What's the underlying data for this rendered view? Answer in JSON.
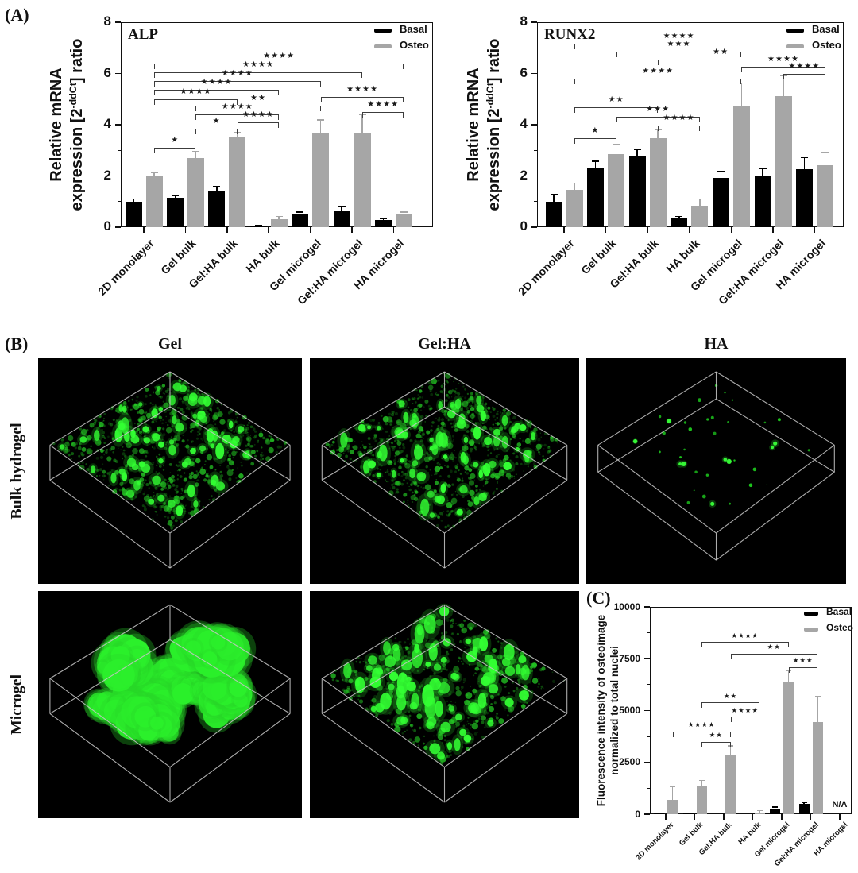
{
  "panel_a": {
    "label": "(A)",
    "ylabel": {
      "line1": "Relative mRNA",
      "line2_pre": "expression [2",
      "line2_sup": "-ddCt",
      "line2_post": "] ratio"
    }
  },
  "panel_b": {
    "label": "(B)",
    "columns": [
      "Gel",
      "Gel:HA",
      "HA"
    ],
    "rows": [
      "Bulk hydrogel",
      "Microgel"
    ]
  },
  "panel_c": {
    "label": "(C)",
    "ylabel": {
      "line1": "Fluorescence intensity of osteoimage",
      "line2": "normalized to total nuclei"
    }
  },
  "chart_data": [
    {
      "type": "bar",
      "title": "ALP",
      "ylabel": "Relative mRNA expression [2^-ddCt] ratio",
      "categories": [
        "2D monolayer",
        "Gel bulk",
        "Gel:HA bulk",
        "HA bulk",
        "Gel microgel",
        "Gel:HA microgel",
        "HA microgel"
      ],
      "series": [
        {
          "name": "Basal",
          "color": "#000000",
          "values": [
            1.0,
            1.15,
            1.4,
            0.05,
            0.52,
            0.65,
            0.28
          ],
          "errors": [
            0.1,
            0.08,
            0.2,
            0.02,
            0.07,
            0.15,
            0.06
          ]
        },
        {
          "name": "Osteo",
          "color": "#a6a6a6",
          "values": [
            2.0,
            2.7,
            3.5,
            0.3,
            3.65,
            3.7,
            0.53
          ],
          "errors": [
            0.12,
            0.26,
            0.21,
            0.12,
            0.54,
            0.7,
            0.06
          ]
        }
      ],
      "ylim": [
        0,
        8
      ],
      "yticks": [
        0,
        2,
        4,
        6,
        8
      ],
      "legend_position": "top-right",
      "grid": false,
      "significance": [
        {
          "group1": 0,
          "group2": 6,
          "y": 6.4,
          "stars": "****"
        },
        {
          "group1": 0,
          "group2": 5,
          "y": 6.05,
          "stars": "****"
        },
        {
          "group1": 0,
          "group2": 4,
          "y": 5.7,
          "stars": "****"
        },
        {
          "group1": 0,
          "group2": 3,
          "y": 5.35,
          "stars": "****"
        },
        {
          "group1": 0,
          "group2": 2,
          "y": 5.0,
          "stars": "****"
        },
        {
          "group1": 4,
          "group2": 6,
          "y": 5.1,
          "stars": "****"
        },
        {
          "group1": 1,
          "group2": 4,
          "y": 4.75,
          "stars": "**"
        },
        {
          "group1": 5,
          "group2": 6,
          "y": 4.5,
          "stars": "****"
        },
        {
          "group1": 1,
          "group2": 3,
          "y": 4.4,
          "stars": "****"
        },
        {
          "group1": 2,
          "group2": 3,
          "y": 4.1,
          "stars": "****"
        },
        {
          "group1": 1,
          "group2": 2,
          "y": 3.85,
          "stars": "*"
        },
        {
          "group1": 0,
          "group2": 1,
          "y": 3.1,
          "stars": "*"
        }
      ]
    },
    {
      "type": "bar",
      "title": "RUNX2",
      "ylabel": "Relative mRNA expression [2^-ddCt] ratio",
      "categories": [
        "2D monolayer",
        "Gel bulk",
        "Gel:HA bulk",
        "HA bulk",
        "Gel microgel",
        "Gel:HA microgel",
        "HA microgel"
      ],
      "series": [
        {
          "name": "Basal",
          "color": "#000000",
          "values": [
            1.0,
            2.3,
            2.8,
            0.36,
            1.92,
            2.02,
            2.26
          ],
          "errors": [
            0.28,
            0.27,
            0.24,
            0.06,
            0.26,
            0.26,
            0.45
          ]
        },
        {
          "name": "Osteo",
          "color": "#a6a6a6",
          "values": [
            1.47,
            2.86,
            3.48,
            0.83,
            4.7,
            5.13,
            2.42
          ],
          "errors": [
            0.25,
            0.38,
            0.34,
            0.27,
            0.93,
            0.79,
            0.51
          ]
        }
      ],
      "ylim": [
        0,
        8
      ],
      "yticks": [
        0,
        2,
        4,
        6,
        8
      ],
      "legend_position": "top-right",
      "grid": false,
      "significance": [
        {
          "group1": 0,
          "group2": 5,
          "y": 7.15,
          "stars": "****"
        },
        {
          "group1": 1,
          "group2": 4,
          "y": 6.85,
          "stars": "***"
        },
        {
          "group1": 2,
          "group2": 5,
          "y": 6.55,
          "stars": "**"
        },
        {
          "group1": 4,
          "group2": 6,
          "y": 6.27,
          "stars": "****"
        },
        {
          "group1": 5,
          "group2": 6,
          "y": 5.97,
          "stars": "****"
        },
        {
          "group1": 0,
          "group2": 4,
          "y": 5.8,
          "stars": "****"
        },
        {
          "group1": 0,
          "group2": 2,
          "y": 4.67,
          "stars": "**"
        },
        {
          "group1": 1,
          "group2": 3,
          "y": 4.32,
          "stars": "***"
        },
        {
          "group1": 2,
          "group2": 3,
          "y": 3.98,
          "stars": "****"
        },
        {
          "group1": 0,
          "group2": 1,
          "y": 3.48,
          "stars": "*"
        }
      ]
    },
    {
      "type": "bar",
      "title": "",
      "ylabel": "Fluorescence intensity of osteoimage normalized to total nuclei",
      "categories": [
        "2D monolayer",
        "Gel bulk",
        "Gel:HA bulk",
        "HA bulk",
        "Gel microgel",
        "Gel:HA microgel",
        "HA microgel"
      ],
      "series": [
        {
          "name": "Basal",
          "color": "#000000",
          "values": [
            30,
            30,
            0,
            0,
            230,
            500,
            null
          ],
          "errors": [
            0,
            0,
            0,
            0,
            120,
            60,
            null
          ]
        },
        {
          "name": "Osteo",
          "color": "#a6a6a6",
          "values": [
            690,
            1390,
            2850,
            60,
            6390,
            4440,
            null
          ],
          "errors": [
            660,
            230,
            450,
            120,
            550,
            1250,
            null
          ]
        }
      ],
      "ylim": [
        0,
        10000
      ],
      "yticks": [
        0,
        2500,
        5000,
        7500,
        10000
      ],
      "legend_position": "top-right",
      "grid": false,
      "na_label": "N/A",
      "na_index": 6,
      "significance": [
        {
          "group1": 1,
          "group2": 4,
          "y": 8300,
          "stars": "****"
        },
        {
          "group1": 2,
          "group2": 5,
          "y": 7750,
          "stars": "**"
        },
        {
          "group1": 4,
          "group2": 5,
          "y": 7100,
          "stars": "***"
        },
        {
          "group1": 1,
          "group2": 3,
          "y": 5400,
          "stars": "**"
        },
        {
          "group1": 2,
          "group2": 3,
          "y": 4700,
          "stars": "****"
        },
        {
          "group1": 0,
          "group2": 2,
          "y": 4000,
          "stars": "****"
        },
        {
          "group1": 1,
          "group2": 2,
          "y": 3500,
          "stars": "**"
        }
      ]
    }
  ]
}
